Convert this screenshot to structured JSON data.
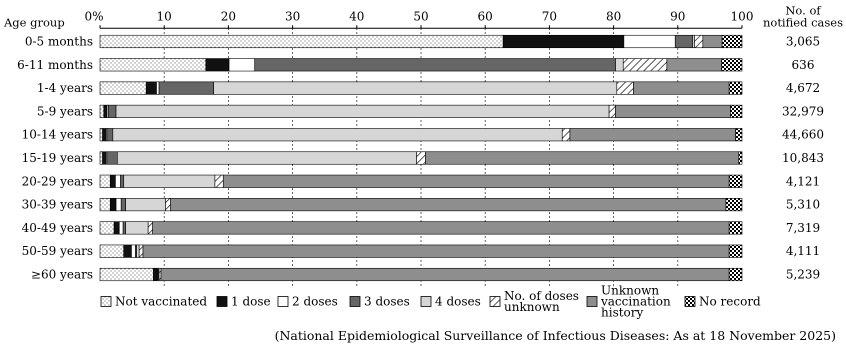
{
  "chart_data": {
    "type": "bar",
    "stacked": true,
    "orientation": "horizontal",
    "xlim": [
      0,
      100
    ],
    "xticks": [
      "0%",
      "10",
      "20",
      "30",
      "40",
      "50",
      "60",
      "70",
      "80",
      "90",
      "100"
    ],
    "y_header": "Age group",
    "count_header": [
      "No. of",
      "notified cases"
    ],
    "grid": true,
    "legend_position": "bottom",
    "categories": [
      "0-5 months",
      "6-11 months",
      "1-4 years",
      "5-9 years",
      "10-14 years",
      "15-19 years",
      "20-29 years",
      "30-39 years",
      "40-49 years",
      "50-59 years",
      "≥60 years"
    ],
    "counts": [
      "3,065",
      "636",
      "4,672",
      "32,979",
      "44,660",
      "10,843",
      "4,121",
      "5,310",
      "7,319",
      "4,111",
      "5,239"
    ],
    "series": [
      {
        "name": "Not vaccinated",
        "legend_lines": [
          "Not vaccinated"
        ],
        "pattern": "dots",
        "values": [
          62.8,
          16.5,
          7.2,
          0.6,
          0.4,
          0.4,
          1.6,
          1.6,
          2.2,
          3.7,
          8.3
        ]
      },
      {
        "name": "1 dose",
        "legend_lines": [
          "1 dose"
        ],
        "pattern": "black",
        "values": [
          18.8,
          3.6,
          1.6,
          0.5,
          0.6,
          0.6,
          0.8,
          0.9,
          0.8,
          1.2,
          0.6
        ]
      },
      {
        "name": "2 doses",
        "legend_lines": [
          "2 doses"
        ],
        "pattern": "white",
        "values": [
          8.0,
          4.0,
          0.4,
          0.2,
          0.2,
          0.2,
          0.8,
          0.8,
          0.6,
          0.6,
          0.1
        ]
      },
      {
        "name": "3 doses",
        "legend_lines": [
          "3 doses"
        ],
        "pattern": "dark",
        "values": [
          2.7,
          56.2,
          8.5,
          1.2,
          0.8,
          1.5,
          0.5,
          0.7,
          0.4,
          0.2,
          0.1
        ]
      },
      {
        "name": "4 doses",
        "legend_lines": [
          "4 doses"
        ],
        "pattern": "light",
        "values": [
          0.3,
          1.2,
          62.8,
          76.8,
          70.0,
          46.6,
          14.2,
          6.2,
          3.5,
          0.4,
          0.1
        ]
      },
      {
        "name": "No. of doses unknown",
        "legend_lines": [
          "No. of doses",
          "unknown"
        ],
        "pattern": "hatch",
        "values": [
          1.3,
          6.8,
          2.6,
          1.0,
          1.2,
          1.4,
          1.3,
          0.8,
          0.7,
          0.6,
          0.3
        ]
      },
      {
        "name": "Unknown vaccination history",
        "legend_lines": [
          "Unknown",
          "vaccination",
          "history"
        ],
        "pattern": "mid",
        "values": [
          3.0,
          8.5,
          14.9,
          17.9,
          25.8,
          48.8,
          78.8,
          86.5,
          89.8,
          91.3,
          88.5
        ]
      },
      {
        "name": "No record",
        "legend_lines": [
          "No record"
        ],
        "pattern": "checker",
        "values": [
          3.1,
          3.2,
          2.0,
          1.8,
          1.0,
          0.5,
          2.0,
          2.5,
          2.0,
          2.0,
          2.0
        ]
      }
    ],
    "source_note": "(National Epidemiological Surveillance of Infectious Diseases: As at 18 November 2025)"
  }
}
